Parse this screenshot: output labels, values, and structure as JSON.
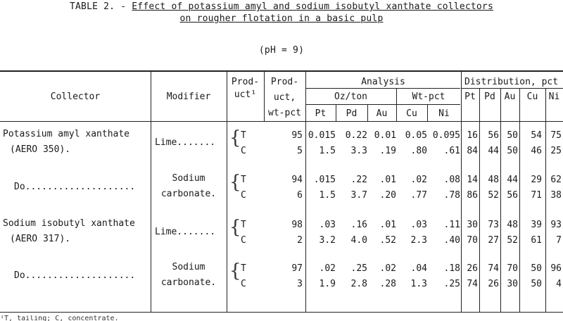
{
  "title": {
    "prefix": "TABLE 2. - ",
    "line1_underlined": "Effect of potassium amyl and sodium isobutyl xanthate collectors",
    "line2": "on rougher flotation in a basic pulp",
    "condition": "(pH = 9)"
  },
  "headers": {
    "collector": "Collector",
    "modifier": "Modifier",
    "product_1": "Prod-",
    "product_2": "uct¹",
    "product_wt_1": "Prod-",
    "product_wt_2": "uct,",
    "product_wt_3": "wt-pct",
    "analysis": "Analysis",
    "oz_ton": "Oz/ton",
    "wt_pct": "Wt-pct",
    "distribution": "Distribution, pct",
    "pt": "Pt",
    "pd": "Pd",
    "au": "Au",
    "cu": "Cu",
    "ni": "Ni"
  },
  "groups": [
    {
      "collector_1": "Potassium amyl xanthate",
      "collector_2": "(AERO 350).",
      "modifier_1": "Lime.......",
      "modifier_2": "",
      "rows": [
        {
          "prod": "T",
          "wt": "95",
          "pt": "0.015",
          "pd": "0.22",
          "au": "0.01",
          "cu": "0.05",
          "ni": "0.095",
          "dpt": "16",
          "dpd": "56",
          "dau": "50",
          "dcu": "54",
          "dni": "75"
        },
        {
          "prod": "C",
          "wt": "5",
          "pt": "1.5",
          "pd": "3.3",
          "au": ".19",
          "cu": ".80",
          "ni": ".61",
          "dpt": "84",
          "dpd": "44",
          "dau": "50",
          "dcu": "46",
          "dni": "25"
        }
      ]
    },
    {
      "collector_1": "Do....................",
      "collector_2": "",
      "modifier_1": "Sodium",
      "modifier_2": "carbonate.",
      "rows": [
        {
          "prod": "T",
          "wt": "94",
          "pt": ".015",
          "pd": ".22",
          "au": ".01",
          "cu": ".02",
          "ni": ".08",
          "dpt": "14",
          "dpd": "48",
          "dau": "44",
          "dcu": "29",
          "dni": "62"
        },
        {
          "prod": "C",
          "wt": "6",
          "pt": "1.5",
          "pd": "3.7",
          "au": ".20",
          "cu": ".77",
          "ni": ".78",
          "dpt": "86",
          "dpd": "52",
          "dau": "56",
          "dcu": "71",
          "dni": "38"
        }
      ]
    },
    {
      "collector_1": "Sodium isobutyl xanthate",
      "collector_2": "(AERO 317).",
      "modifier_1": "Lime.......",
      "modifier_2": "",
      "rows": [
        {
          "prod": "T",
          "wt": "98",
          "pt": ".03",
          "pd": ".16",
          "au": ".01",
          "cu": ".03",
          "ni": ".11",
          "dpt": "30",
          "dpd": "73",
          "dau": "48",
          "dcu": "39",
          "dni": "93"
        },
        {
          "prod": "C",
          "wt": "2",
          "pt": "3.2",
          "pd": "4.0",
          "au": ".52",
          "cu": "2.3",
          "ni": ".40",
          "dpt": "70",
          "dpd": "27",
          "dau": "52",
          "dcu": "61",
          "dni": "7"
        }
      ]
    },
    {
      "collector_1": "Do....................",
      "collector_2": "",
      "modifier_1": "Sodium",
      "modifier_2": "carbonate.",
      "rows": [
        {
          "prod": "T",
          "wt": "97",
          "pt": ".02",
          "pd": ".25",
          "au": ".02",
          "cu": ".04",
          "ni": ".18",
          "dpt": "26",
          "dpd": "74",
          "dau": "70",
          "dcu": "50",
          "dni": "96"
        },
        {
          "prod": "C",
          "wt": "3",
          "pt": "1.9",
          "pd": "2.8",
          "au": ".28",
          "cu": "1.3",
          "ni": ".25",
          "dpt": "74",
          "dpd": "26",
          "dau": "30",
          "dcu": "50",
          "dni": "4"
        }
      ]
    }
  ],
  "footnote": "¹T, tailing; C, concentrate."
}
